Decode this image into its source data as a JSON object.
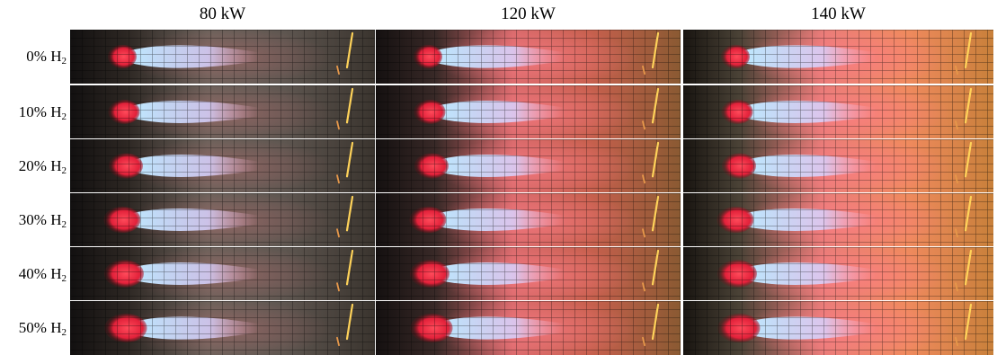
{
  "columns": [
    {
      "label": "80 kW",
      "power_kw": 80
    },
    {
      "label": "120 kW",
      "power_kw": 120
    },
    {
      "label": "140 kW",
      "power_kw": 140
    }
  ],
  "rows": [
    {
      "prefix": "0% H",
      "sub": "2",
      "h2_percent": 0
    },
    {
      "prefix": "10% H",
      "sub": "2",
      "h2_percent": 10
    },
    {
      "prefix": "20% H",
      "sub": "2",
      "h2_percent": 20
    },
    {
      "prefix": "30% H",
      "sub": "2",
      "h2_percent": 30
    },
    {
      "prefix": "40% H",
      "sub": "2",
      "h2_percent": 40
    },
    {
      "prefix": "50% H",
      "sub": "2",
      "h2_percent": 50
    }
  ],
  "colors": {
    "background": "#ffffff",
    "chamber_dark": "#1a1714",
    "nozzle_red": "#e2213a",
    "core_blue": "#bfe8ff",
    "plume_pink": "#ff7d86",
    "plume_orange": "#e6984a",
    "grid_line": "#000000",
    "probe_glow": "#ffd35a"
  }
}
